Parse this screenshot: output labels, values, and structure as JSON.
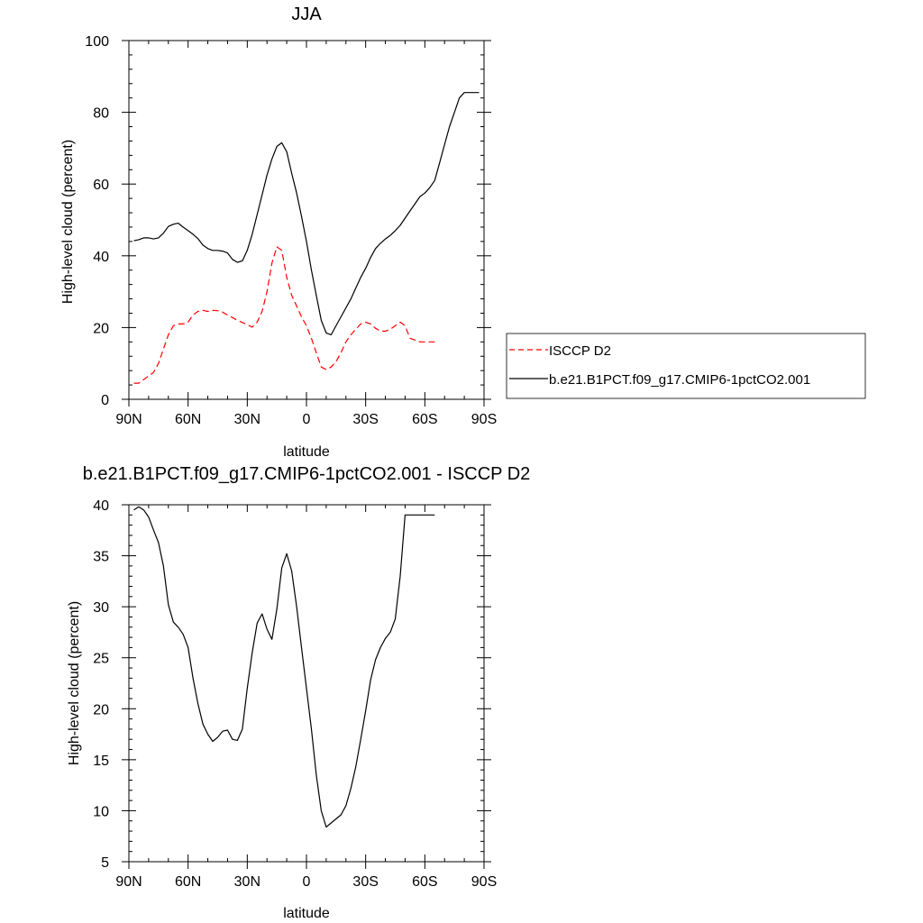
{
  "chart_data": [
    {
      "type": "line",
      "title": "JJA",
      "xlabel": "latitude",
      "ylabel": "High-level cloud (percent)",
      "xlim": [
        -90,
        90
      ],
      "ylim": [
        0,
        100
      ],
      "x_ticks": [
        -90,
        -60,
        -30,
        0,
        30,
        60,
        90
      ],
      "x_tick_labels": [
        "90N",
        "60N",
        "30N",
        "0",
        "30S",
        "60S",
        "90S"
      ],
      "y_ticks": [
        0,
        20,
        40,
        60,
        80,
        100
      ],
      "y_tick_labels": [
        "0",
        "20",
        "40",
        "60",
        "80",
        "100"
      ],
      "grid": false,
      "legend_position": "right",
      "series": [
        {
          "name": "ISCCP D2",
          "color": "#ff0000",
          "dash": "dashed",
          "x": [
            -87.5,
            -85,
            -82.5,
            -80,
            -77.5,
            -75,
            -72.5,
            -70,
            -67.5,
            -65,
            -62.5,
            -60,
            -57.5,
            -55,
            -52.5,
            -50,
            -47.5,
            -45,
            -42.5,
            -40,
            -37.5,
            -35,
            -32.5,
            -30,
            -27.5,
            -25,
            -22.5,
            -20,
            -17.5,
            -15,
            -12.5,
            -10,
            -7.5,
            -5,
            -2.5,
            0,
            2.5,
            5,
            7.5,
            10,
            12.5,
            15,
            17.5,
            20,
            22.5,
            25,
            27.5,
            30,
            32.5,
            35,
            37.5,
            40,
            42.5,
            45,
            47.5,
            50,
            52.5,
            55,
            57.5,
            60,
            62.5,
            65
          ],
          "y": [
            4.5,
            4.5,
            5.5,
            6.5,
            7.5,
            10,
            14,
            18,
            20.5,
            21,
            21,
            21.5,
            23.5,
            24.5,
            24.8,
            24.5,
            24.8,
            24.7,
            24.3,
            23.5,
            22.8,
            22,
            21.4,
            20.8,
            20.1,
            21.5,
            24.5,
            30,
            38,
            42.5,
            41.5,
            34,
            29,
            26,
            23,
            20.5,
            17,
            13,
            9,
            8.3,
            9,
            10.5,
            13,
            16,
            18,
            19.5,
            21,
            21.5,
            21,
            19.8,
            19,
            19,
            19.5,
            20.5,
            21.5,
            20.5,
            17,
            16.5,
            16,
            16,
            16,
            16
          ]
        },
        {
          "name": "b.e21.B1PCT.f09_g17.CMIP6-1pctCO2.001",
          "color": "#000000",
          "dash": "solid",
          "x": [
            -87.5,
            -85,
            -82.5,
            -80,
            -77.5,
            -75,
            -72.5,
            -70,
            -67.5,
            -65,
            -62.5,
            -60,
            -57.5,
            -55,
            -52.5,
            -50,
            -47.5,
            -45,
            -42.5,
            -40,
            -37.5,
            -35,
            -32.5,
            -30,
            -27.5,
            -25,
            -22.5,
            -20,
            -17.5,
            -15,
            -12.5,
            -10,
            -7.5,
            -5,
            -2.5,
            0,
            2.5,
            5,
            7.5,
            10,
            12.5,
            15,
            17.5,
            20,
            22.5,
            25,
            27.5,
            30,
            32.5,
            35,
            37.5,
            40,
            42.5,
            45,
            47.5,
            50,
            52.5,
            55,
            57.5,
            60,
            62.5,
            65,
            67.5,
            70,
            72.5,
            75,
            77.5,
            80,
            82.5,
            85,
            87.5
          ],
          "y": [
            44.2,
            44.5,
            45,
            45,
            44.7,
            45,
            46.3,
            48.2,
            48.8,
            49.1,
            48,
            47,
            46,
            44.8,
            43,
            42,
            41.5,
            41.5,
            41.3,
            40.8,
            39,
            38.2,
            38.6,
            41.5,
            46,
            51.5,
            57,
            62.5,
            67,
            70.5,
            71.5,
            69,
            63,
            57.5,
            51,
            44,
            36,
            29,
            22,
            18.5,
            18,
            20.5,
            23,
            25.5,
            28,
            31,
            34,
            36.5,
            39.5,
            42,
            43.5,
            44.7,
            45.7,
            47,
            48.5,
            50.5,
            52.5,
            54.5,
            56.5,
            57.5,
            59,
            61,
            66,
            71,
            76,
            80,
            84,
            85.5,
            85.5,
            85.5,
            85.5
          ]
        }
      ]
    },
    {
      "type": "line",
      "title": "b.e21.B1PCT.f09_g17.CMIP6-1pctCO2.001 - ISCCP D2",
      "xlabel": "latitude",
      "ylabel": "High-level cloud (percent)",
      "xlim": [
        -90,
        90
      ],
      "ylim": [
        5,
        40
      ],
      "x_ticks": [
        -90,
        -60,
        -30,
        0,
        30,
        60,
        90
      ],
      "x_tick_labels": [
        "90N",
        "60N",
        "30N",
        "0",
        "30S",
        "60S",
        "90S"
      ],
      "y_ticks": [
        5,
        10,
        15,
        20,
        25,
        30,
        35,
        40
      ],
      "y_tick_labels": [
        "5",
        "10",
        "15",
        "20",
        "25",
        "30",
        "35",
        "40"
      ],
      "grid": false,
      "series": [
        {
          "color": "#000000",
          "dash": "solid",
          "x": [
            -87.5,
            -85,
            -82.5,
            -80,
            -77.5,
            -75,
            -72.5,
            -70,
            -67.5,
            -65,
            -62.5,
            -60,
            -57.5,
            -55,
            -52.5,
            -50,
            -47.5,
            -45,
            -42.5,
            -40,
            -37.5,
            -35,
            -32.5,
            -30,
            -27.5,
            -25,
            -22.5,
            -20,
            -17.5,
            -15,
            -12.5,
            -10,
            -7.5,
            -5,
            -2.5,
            0,
            2.5,
            5,
            7.5,
            10,
            12.5,
            15,
            17.5,
            20,
            22.5,
            25,
            27.5,
            30,
            32.5,
            35,
            37.5,
            40,
            42.5,
            45,
            47.5,
            50,
            52.5,
            55,
            57.5,
            60,
            62.5,
            65
          ],
          "y": [
            39.5,
            39.8,
            39.5,
            38.8,
            37.5,
            36.3,
            34,
            30.2,
            28.5,
            28,
            27.3,
            26,
            23,
            20.5,
            18.5,
            17.5,
            16.8,
            17.2,
            17.8,
            17.9,
            17,
            16.9,
            18,
            22,
            25.5,
            28.4,
            29.3,
            27.8,
            26.8,
            29.8,
            33.8,
            35.2,
            33.5,
            30,
            26,
            22,
            18,
            13.5,
            10,
            8.4,
            8.8,
            9.2,
            9.6,
            10.5,
            12.2,
            14.3,
            17,
            19.8,
            22.8,
            24.8,
            26,
            26.9,
            27.5,
            28.8,
            33,
            39,
            39,
            39,
            39,
            39,
            39,
            39
          ]
        }
      ]
    }
  ]
}
